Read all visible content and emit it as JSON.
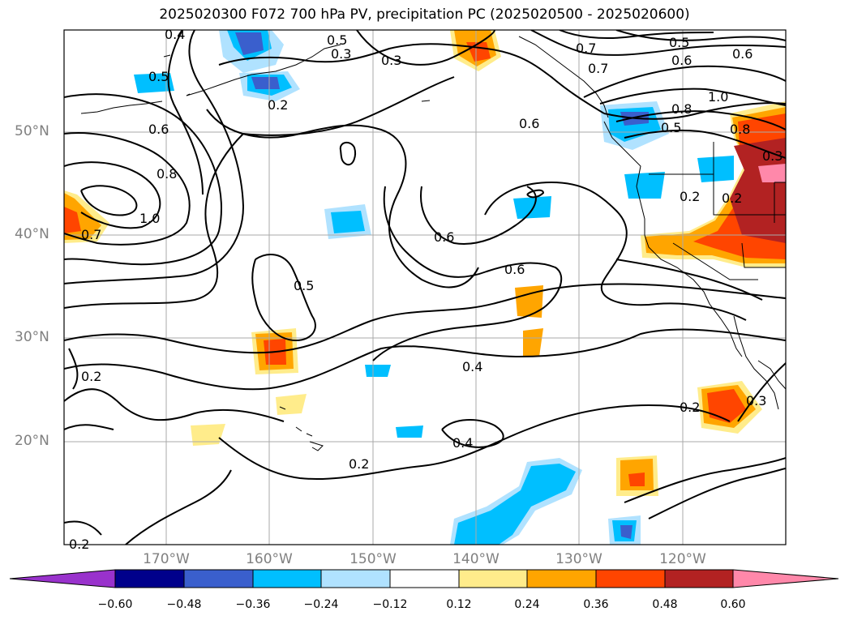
{
  "title": "2025020300 F072 700 hPa PV, precipitation PC (2025020500 - 2025020600)",
  "lat_labels": [
    "50°N",
    "40°N",
    "30°N",
    "20°N"
  ],
  "lon_labels": [
    "170°W",
    "160°W",
    "150°W",
    "140°W",
    "130°W",
    "120°W"
  ],
  "contour_labels": [
    "0.4",
    "0.5",
    "0.5",
    "0.3",
    "0.2",
    "0.6",
    "0.8",
    "0.7",
    "0.5",
    "0.6",
    "0.7",
    "0.6",
    "0.8",
    "0.5",
    "1.0",
    "0.6",
    "0.8",
    "1.0",
    "0.7",
    "0.6",
    "0.5",
    "0.6",
    "0.4",
    "0.4",
    "0.2",
    "0.2",
    "0.2",
    "0.2",
    "0.2",
    "0.3",
    "0.2",
    "0.3",
    "0.3"
  ],
  "colorbar": {
    "ticks": [
      "−0.60",
      "−0.48",
      "−0.36",
      "−0.24",
      "−0.12",
      "0.12",
      "0.24",
      "0.36",
      "0.48",
      "0.60"
    ],
    "colors": [
      "#9932cc",
      "#00008b",
      "#3a5fcd",
      "#00bfff",
      "#b0e2ff",
      "#ffffff",
      "#ffec8b",
      "#ffa500",
      "#ff4500",
      "#b22222",
      "#ff88aa"
    ]
  },
  "shade_colors": {
    "light_blue": "#b0e2ff",
    "blue": "#00bfff",
    "mid_blue": "#3a5fcd",
    "yellow": "#ffec8b",
    "orange": "#ffa500",
    "red_orange": "#ff4500",
    "dark_red": "#b22222",
    "pink": "#ff88aa"
  }
}
